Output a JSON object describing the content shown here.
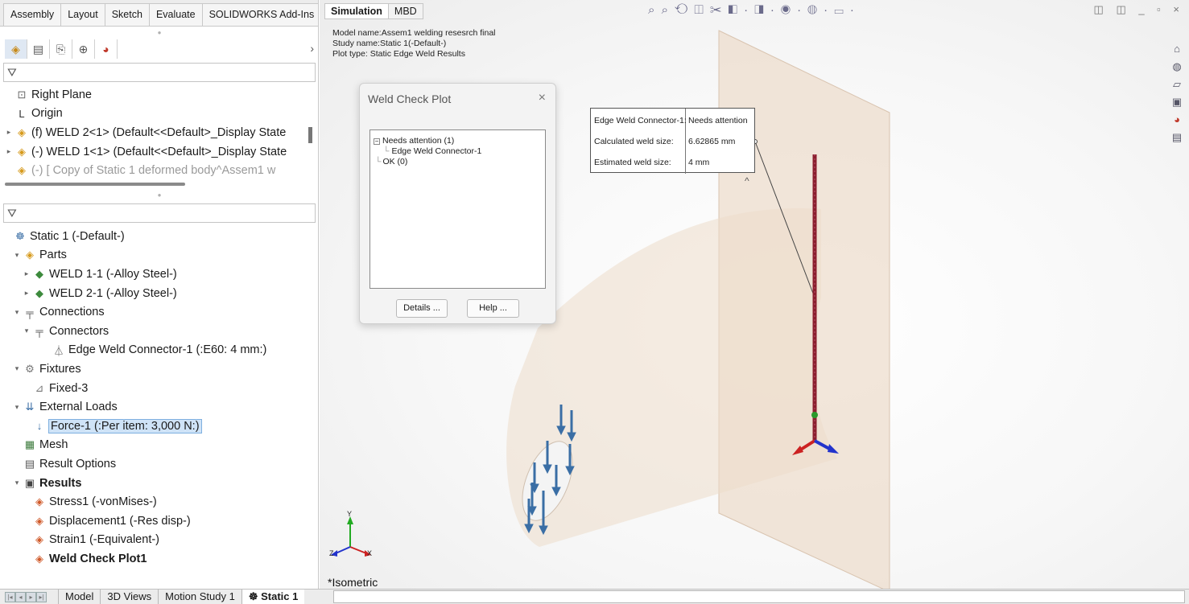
{
  "command_manager": {
    "tabs": [
      "Assembly",
      "Layout",
      "Sketch",
      "Evaluate",
      "SOLIDWORKS Add-Ins"
    ]
  },
  "manager_tabs": [
    "feature-manager-icon",
    "property-manager-icon",
    "configuration-manager-icon",
    "dimxpert-icon",
    "display-manager-icon"
  ],
  "feature_tree": [
    {
      "label": "Right Plane",
      "icon": "plane-icon",
      "glyph": "⊡",
      "expander": ""
    },
    {
      "label": "Origin",
      "icon": "origin-icon",
      "glyph": "L",
      "expander": ""
    },
    {
      "label": "(f) WELD 2<1> (Default<<Default>_Display State",
      "icon": "part-icon",
      "glyph": "◈",
      "expander": "▸"
    },
    {
      "label": "(-) WELD 1<1> (Default<<Default>_Display State",
      "icon": "part-icon",
      "glyph": "◈",
      "expander": "▸"
    },
    {
      "label": "(-) [ Copy of Static 1 deformed body^Assem1 w",
      "icon": "part-icon",
      "glyph": "◈",
      "expander": ""
    }
  ],
  "sim_tree": [
    {
      "label": "Static 1 (-Default-)",
      "icon": "study-icon",
      "glyph": "☸",
      "indent": 0,
      "expander": ""
    },
    {
      "label": "Parts",
      "icon": "parts-icon",
      "glyph": "◈",
      "indent": 1,
      "expander": "▾"
    },
    {
      "label": "WELD 1-1 (-Alloy Steel-)",
      "icon": "solid-body-icon",
      "glyph": "◆",
      "indent": 2,
      "expander": "▸"
    },
    {
      "label": "WELD 2-1 (-Alloy Steel-)",
      "icon": "solid-body-icon",
      "glyph": "◆",
      "indent": 2,
      "expander": "▸"
    },
    {
      "label": "Connections",
      "icon": "connections-icon",
      "glyph": "╤",
      "indent": 1,
      "expander": "▾"
    },
    {
      "label": "Connectors",
      "icon": "connectors-icon",
      "glyph": "╤",
      "indent": 2,
      "expander": "▾"
    },
    {
      "label": "Edge Weld Connector-1 (:E60: 4 mm:)",
      "icon": "edge-weld-icon",
      "glyph": "⏃",
      "indent": 4,
      "expander": ""
    },
    {
      "label": "Fixtures",
      "icon": "fixtures-icon",
      "glyph": "⚙",
      "indent": 1,
      "expander": "▾"
    },
    {
      "label": "Fixed-3",
      "icon": "fixed-icon",
      "glyph": "⊿",
      "indent": 2,
      "expander": ""
    },
    {
      "label": "External Loads",
      "icon": "external-loads-icon",
      "glyph": "⇊",
      "indent": 1,
      "expander": "▾"
    },
    {
      "label": "Force-1 (:Per item: 3,000 N:)",
      "icon": "force-icon",
      "glyph": "↓",
      "indent": 2,
      "expander": "",
      "selected": true
    },
    {
      "label": "Mesh",
      "icon": "mesh-icon",
      "glyph": "▦",
      "indent": 1,
      "expander": ""
    },
    {
      "label": "Result Options",
      "icon": "result-options-icon",
      "glyph": "▤",
      "indent": 1,
      "expander": ""
    },
    {
      "label": "Results",
      "icon": "results-folder-icon",
      "glyph": "▣",
      "indent": 1,
      "expander": "▾",
      "bold": true
    },
    {
      "label": "Stress1 (-vonMises-)",
      "icon": "plot-icon",
      "glyph": "◈",
      "indent": 2,
      "expander": ""
    },
    {
      "label": "Displacement1 (-Res disp-)",
      "icon": "plot-icon",
      "glyph": "◈",
      "indent": 2,
      "expander": ""
    },
    {
      "label": "Strain1 (-Equivalent-)",
      "icon": "plot-icon",
      "glyph": "◈",
      "indent": 2,
      "expander": ""
    },
    {
      "label": "Weld Check Plot1",
      "icon": "plot-icon",
      "glyph": "◈",
      "indent": 2,
      "expander": "",
      "bold": true
    }
  ],
  "graphics": {
    "tabs": [
      "Simulation",
      "MBD"
    ],
    "model_name": "Model name:Assem1 welding resesrch final",
    "study_name": "Study name:Static 1(-Default-)",
    "plot_type": "Plot type: Static Edge Weld Results",
    "view_name": "*Isometric",
    "hud_icons": "⌕ ⌕ ⟲ ◫ ✂ ◧ · ◨ · ◉ · ◍ · ▭ ·",
    "window_controls": "◫ ◫ _ ▫ ×"
  },
  "dialog": {
    "title": "Weld Check Plot",
    "close": "×",
    "tree": {
      "group1": "Needs attention (1)",
      "item1": "Edge Weld Connector-1",
      "group2": "OK (0)"
    },
    "details_button": "Details ...",
    "help_button": "Help ..."
  },
  "callout": {
    "rows": [
      {
        "key": "Edge Weld Connector-1:",
        "value": "Needs attention"
      },
      {
        "key": "Calculated weld size:",
        "value": "6.62865 mm"
      },
      {
        "key": "Estimated weld size:",
        "value": "4 mm"
      }
    ],
    "caret": "^"
  },
  "triad": {
    "x": "X",
    "y": "Y",
    "z": "Z"
  },
  "bottom_tabs": [
    "Model",
    "3D Views",
    "Motion Study 1",
    "Static 1"
  ],
  "colors": {
    "force_arrow": "#3a6ea5",
    "weld_line": "#8b1e2e",
    "plane": "#ecdccb",
    "triad_x": "#cc2222",
    "triad_y": "#22aa22",
    "triad_z": "#2233cc"
  }
}
